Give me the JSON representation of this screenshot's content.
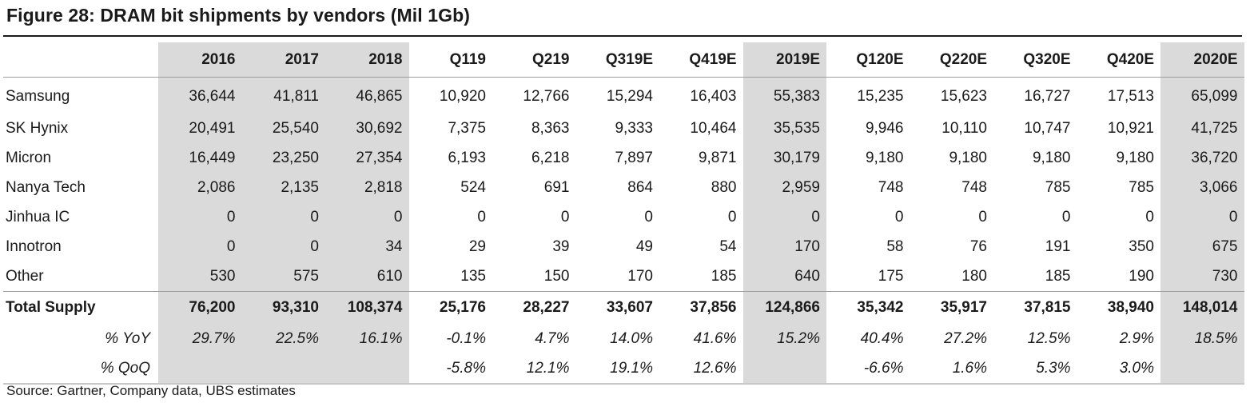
{
  "title": "Figure 28: DRAM bit shipments by vendors (Mil 1Gb)",
  "columns": [
    "2016",
    "2017",
    "2018",
    "Q119",
    "Q219",
    "Q319E",
    "Q419E",
    "2019E",
    "Q120E",
    "Q220E",
    "Q320E",
    "Q420E",
    "2020E"
  ],
  "rows": [
    {
      "label": "Samsung",
      "values": [
        "36,644",
        "41,811",
        "46,865",
        "10,920",
        "12,766",
        "15,294",
        "16,403",
        "55,383",
        "15,235",
        "15,623",
        "16,727",
        "17,513",
        "65,099"
      ]
    },
    {
      "label": "SK Hynix",
      "values": [
        "20,491",
        "25,540",
        "30,692",
        "7,375",
        "8,363",
        "9,333",
        "10,464",
        "35,535",
        "9,946",
        "10,110",
        "10,747",
        "10,921",
        "41,725"
      ]
    },
    {
      "label": "Micron",
      "values": [
        "16,449",
        "23,250",
        "27,354",
        "6,193",
        "6,218",
        "7,897",
        "9,871",
        "30,179",
        "9,180",
        "9,180",
        "9,180",
        "9,180",
        "36,720"
      ]
    },
    {
      "label": "Nanya Tech",
      "values": [
        "2,086",
        "2,135",
        "2,818",
        "524",
        "691",
        "864",
        "880",
        "2,959",
        "748",
        "748",
        "785",
        "785",
        "3,066"
      ]
    },
    {
      "label": "Jinhua IC",
      "values": [
        "0",
        "0",
        "0",
        "0",
        "0",
        "0",
        "0",
        "0",
        "0",
        "0",
        "0",
        "0",
        "0"
      ]
    },
    {
      "label": "Innotron",
      "values": [
        "0",
        "0",
        "34",
        "29",
        "39",
        "49",
        "54",
        "170",
        "58",
        "76",
        "191",
        "350",
        "675"
      ]
    },
    {
      "label": "Other",
      "values": [
        "530",
        "575",
        "610",
        "135",
        "150",
        "170",
        "185",
        "640",
        "175",
        "180",
        "185",
        "190",
        "730"
      ]
    }
  ],
  "total": {
    "label": "Total Supply",
    "values": [
      "76,200",
      "93,310",
      "108,374",
      "25,176",
      "28,227",
      "33,607",
      "37,856",
      "124,866",
      "35,342",
      "35,917",
      "37,815",
      "38,940",
      "148,014"
    ]
  },
  "yoy": {
    "label": "% YoY",
    "values": [
      "29.7%",
      "22.5%",
      "16.1%",
      "-0.1%",
      "4.7%",
      "14.0%",
      "41.6%",
      "15.2%",
      "40.4%",
      "27.2%",
      "12.5%",
      "2.9%",
      "18.5%"
    ]
  },
  "qoq": {
    "label": "% QoQ",
    "values": [
      "",
      "",
      "",
      "-5.8%",
      "12.1%",
      "19.1%",
      "12.6%",
      "",
      "-6.6%",
      "1.6%",
      "5.3%",
      "3.0%",
      ""
    ]
  },
  "source": "Source: Gartner, Company data, UBS estimates",
  "colors": {
    "shade": "#dadada",
    "text": "#1a1a1a"
  }
}
